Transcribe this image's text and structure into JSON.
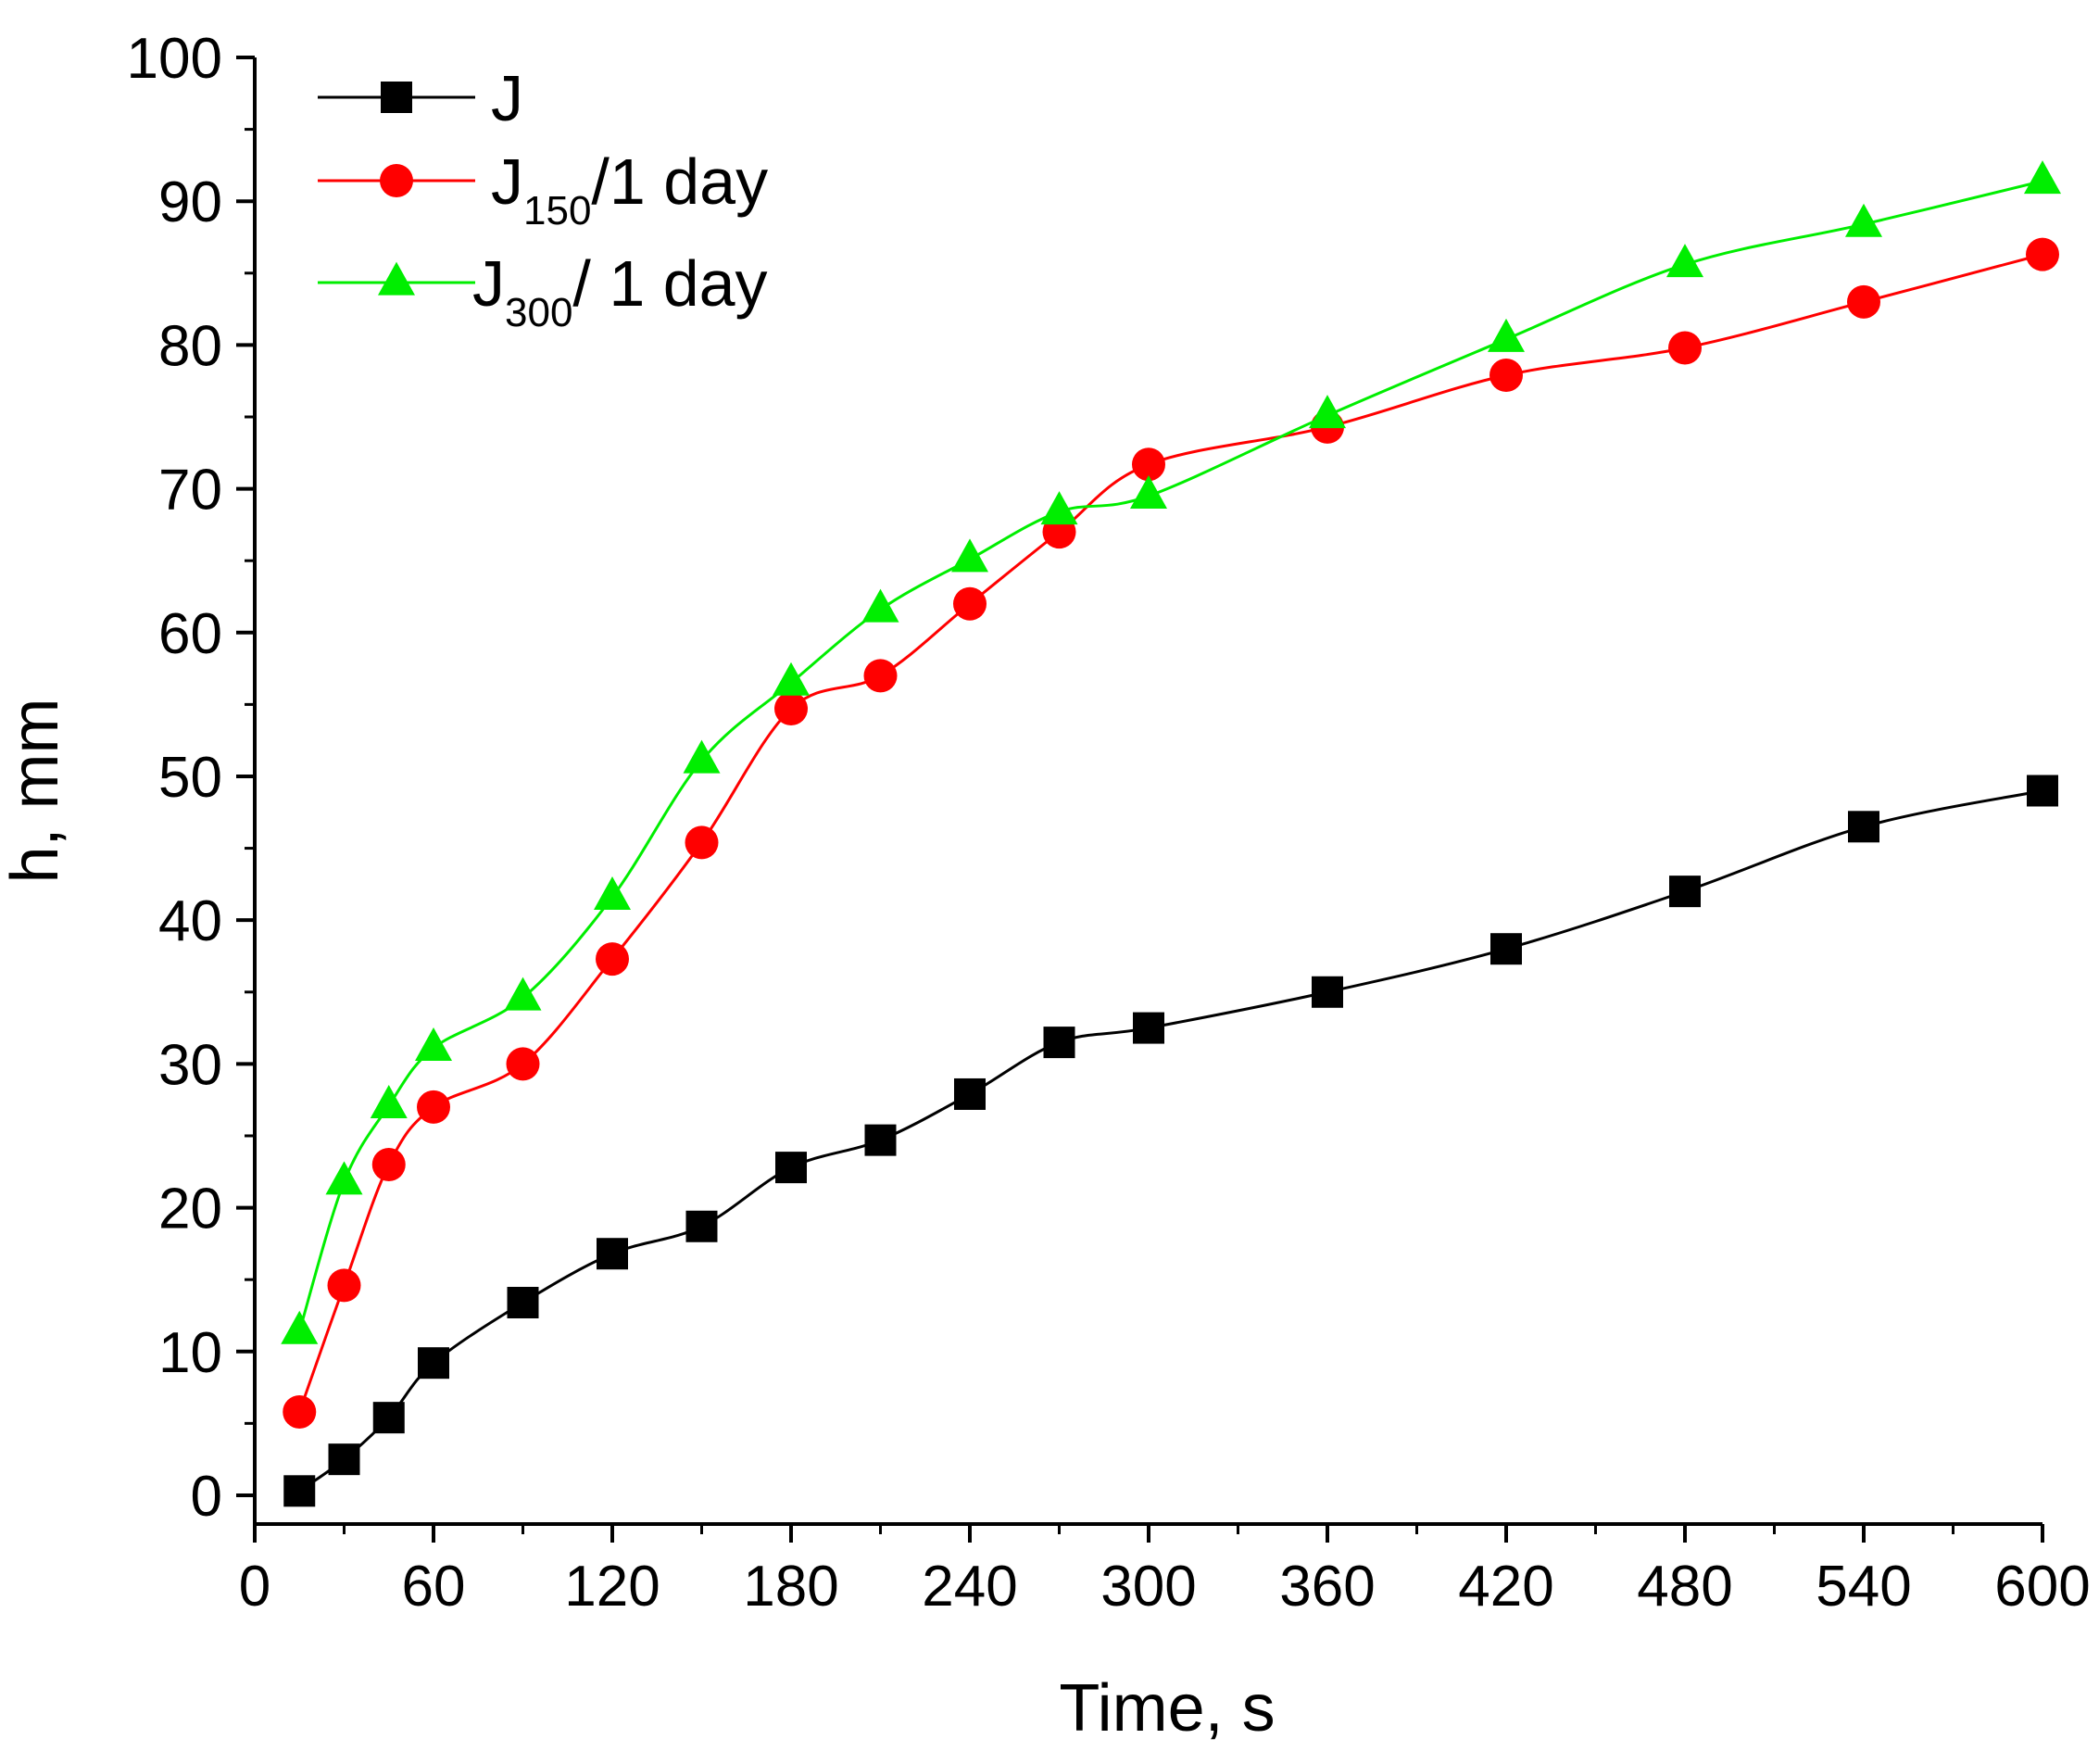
{
  "chart_data": {
    "type": "line",
    "title": "",
    "xlabel": "Time, s",
    "ylabel": "h, mm",
    "xlim": [
      0,
      600
    ],
    "ylim": [
      0,
      100
    ],
    "x_ticks": [
      0,
      60,
      120,
      180,
      240,
      300,
      360,
      420,
      480,
      540,
      600
    ],
    "x_tick_labels": [
      "0",
      "60",
      "120",
      "180",
      "240",
      "300",
      "360",
      "420",
      "480",
      "540",
      "600"
    ],
    "y_ticks": [
      0,
      10,
      20,
      30,
      40,
      50,
      60,
      70,
      80,
      90,
      100
    ],
    "y_tick_labels": [
      "0",
      "10",
      "20",
      "30",
      "40",
      "50",
      "60",
      "70",
      "80",
      "90",
      "100"
    ],
    "grid": false,
    "legend_position": "top-left",
    "series": [
      {
        "name": "J",
        "legend_main": "J",
        "legend_sub": "",
        "legend_after": "",
        "color": "#000000",
        "marker": "square",
        "x": [
          15,
          30,
          45,
          60,
          90,
          120,
          150,
          180,
          210,
          240,
          270,
          300,
          360,
          420,
          480,
          540,
          600
        ],
        "values": [
          0.3,
          2.5,
          5.4,
          9.2,
          13.4,
          16.8,
          18.7,
          22.8,
          24.7,
          27.9,
          31.5,
          32.5,
          35.0,
          38.0,
          42.0,
          46.5,
          49.0
        ]
      },
      {
        "name": "J150/1 day",
        "legend_main": "J",
        "legend_sub": "150",
        "legend_after": "/1 day",
        "color": "#ff0000",
        "marker": "circle",
        "x": [
          15,
          30,
          45,
          60,
          90,
          120,
          150,
          180,
          210,
          240,
          270,
          300,
          360,
          420,
          480,
          540,
          600
        ],
        "values": [
          5.8,
          14.6,
          23.0,
          27.0,
          30.0,
          37.3,
          45.4,
          54.7,
          57.0,
          62.0,
          67.0,
          71.7,
          74.3,
          77.9,
          79.8,
          83.0,
          86.3
        ]
      },
      {
        "name": "J300/ 1 day",
        "legend_main": "J",
        "legend_sub": "300",
        "legend_after": "/ 1 day",
        "color": "#00ee00",
        "marker": "triangle",
        "x": [
          15,
          30,
          45,
          60,
          90,
          120,
          150,
          180,
          210,
          240,
          270,
          300,
          360,
          420,
          480,
          540,
          600
        ],
        "values": [
          11.4,
          21.8,
          27.1,
          31.1,
          34.6,
          41.6,
          51.1,
          56.5,
          61.6,
          65.1,
          68.4,
          69.5,
          75.1,
          80.4,
          85.6,
          88.4,
          91.4
        ]
      }
    ]
  }
}
